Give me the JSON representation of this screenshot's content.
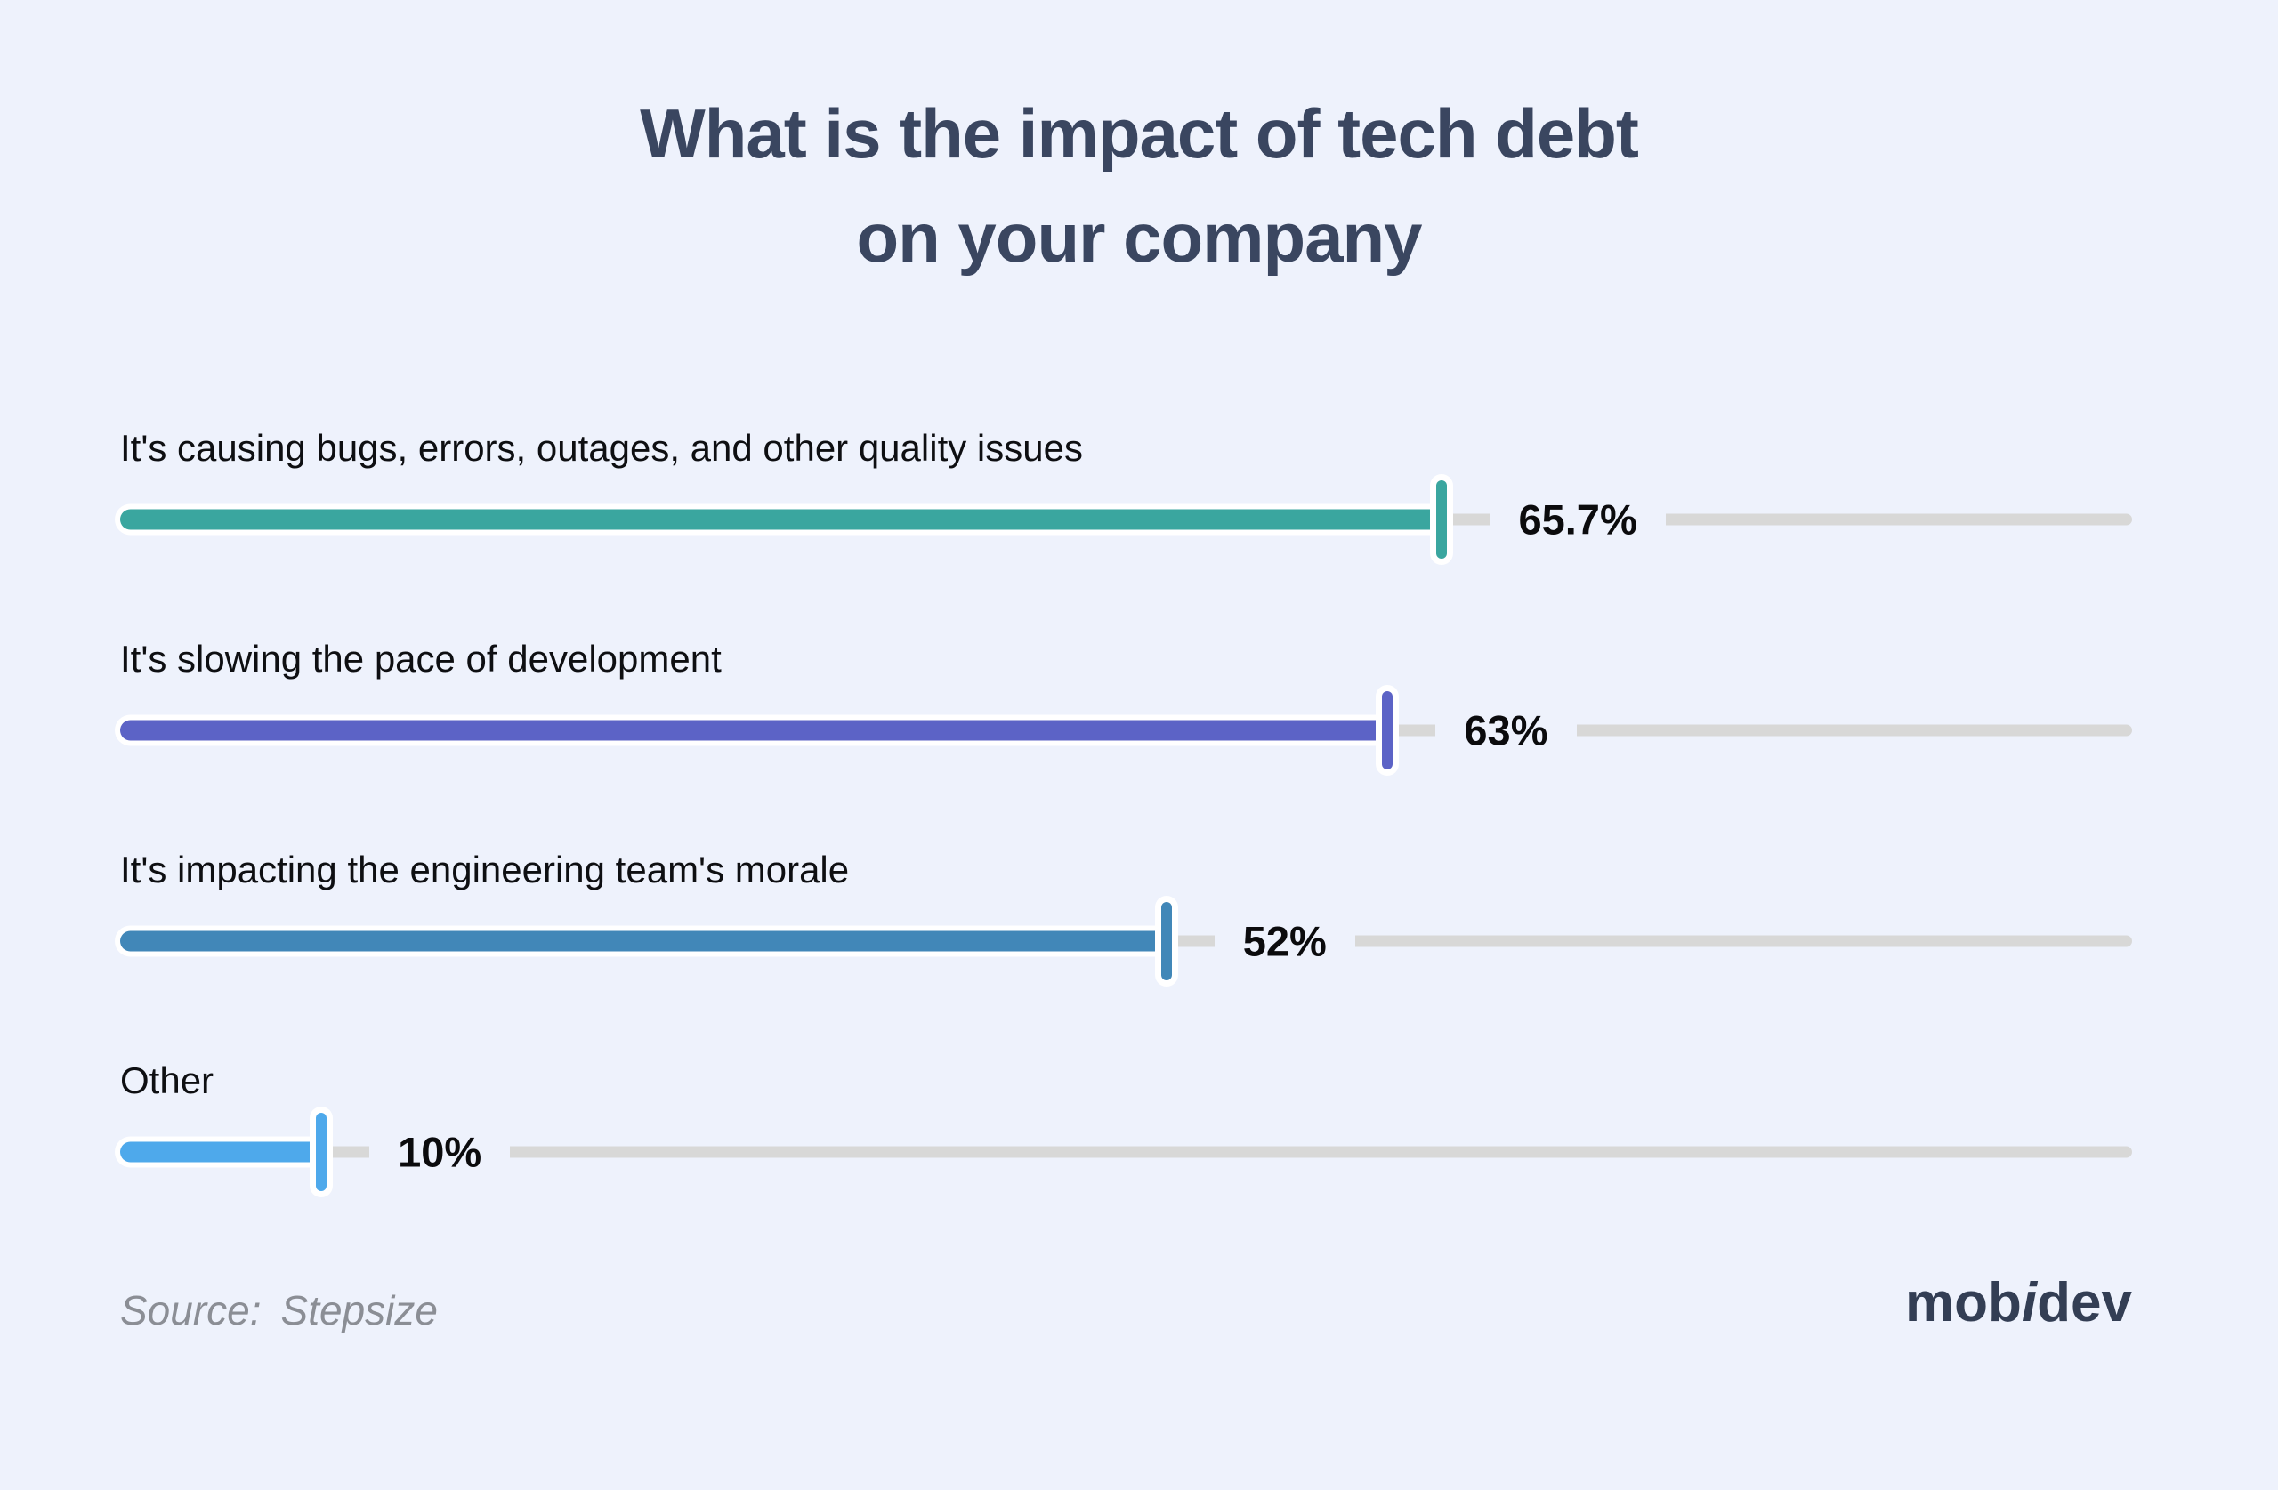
{
  "title": {
    "line1": "What is the impact of tech debt",
    "line2": "on your company"
  },
  "source": {
    "label": "Source:",
    "value": "Stepsize"
  },
  "logo": {
    "pre": "mob",
    "i": "i",
    "post": "dev"
  },
  "colors": {
    "background": "#eef2fc",
    "title": "#3a4660",
    "category_label": "#0e0f12",
    "value_label": "#0b0b0d",
    "track": "#d8d8d7",
    "halo": "#ffffff",
    "source_text": "#8b8e95",
    "logo_text": "#333e54"
  },
  "chart_data": {
    "type": "bar",
    "orientation": "horizontal",
    "title": "What is the impact of tech debt on your company",
    "categories": [
      "It's causing bugs, errors, outages, and other quality issues",
      "It's slowing the pace of development",
      "It's impacting the engineering team's morale",
      "Other"
    ],
    "values": [
      65.7,
      63,
      52,
      10
    ],
    "value_labels": [
      "65.7%",
      "63%",
      "52%",
      "10%"
    ],
    "bar_colors": [
      "#3aa69f",
      "#5c63c6",
      "#4187b8",
      "#4ea9eb"
    ],
    "xlim": [
      0,
      100
    ],
    "grid": false,
    "legend": false,
    "style": "slider bars with white outline, end handle and inline percentage label on gray full-width track",
    "source": "Stepsize"
  }
}
